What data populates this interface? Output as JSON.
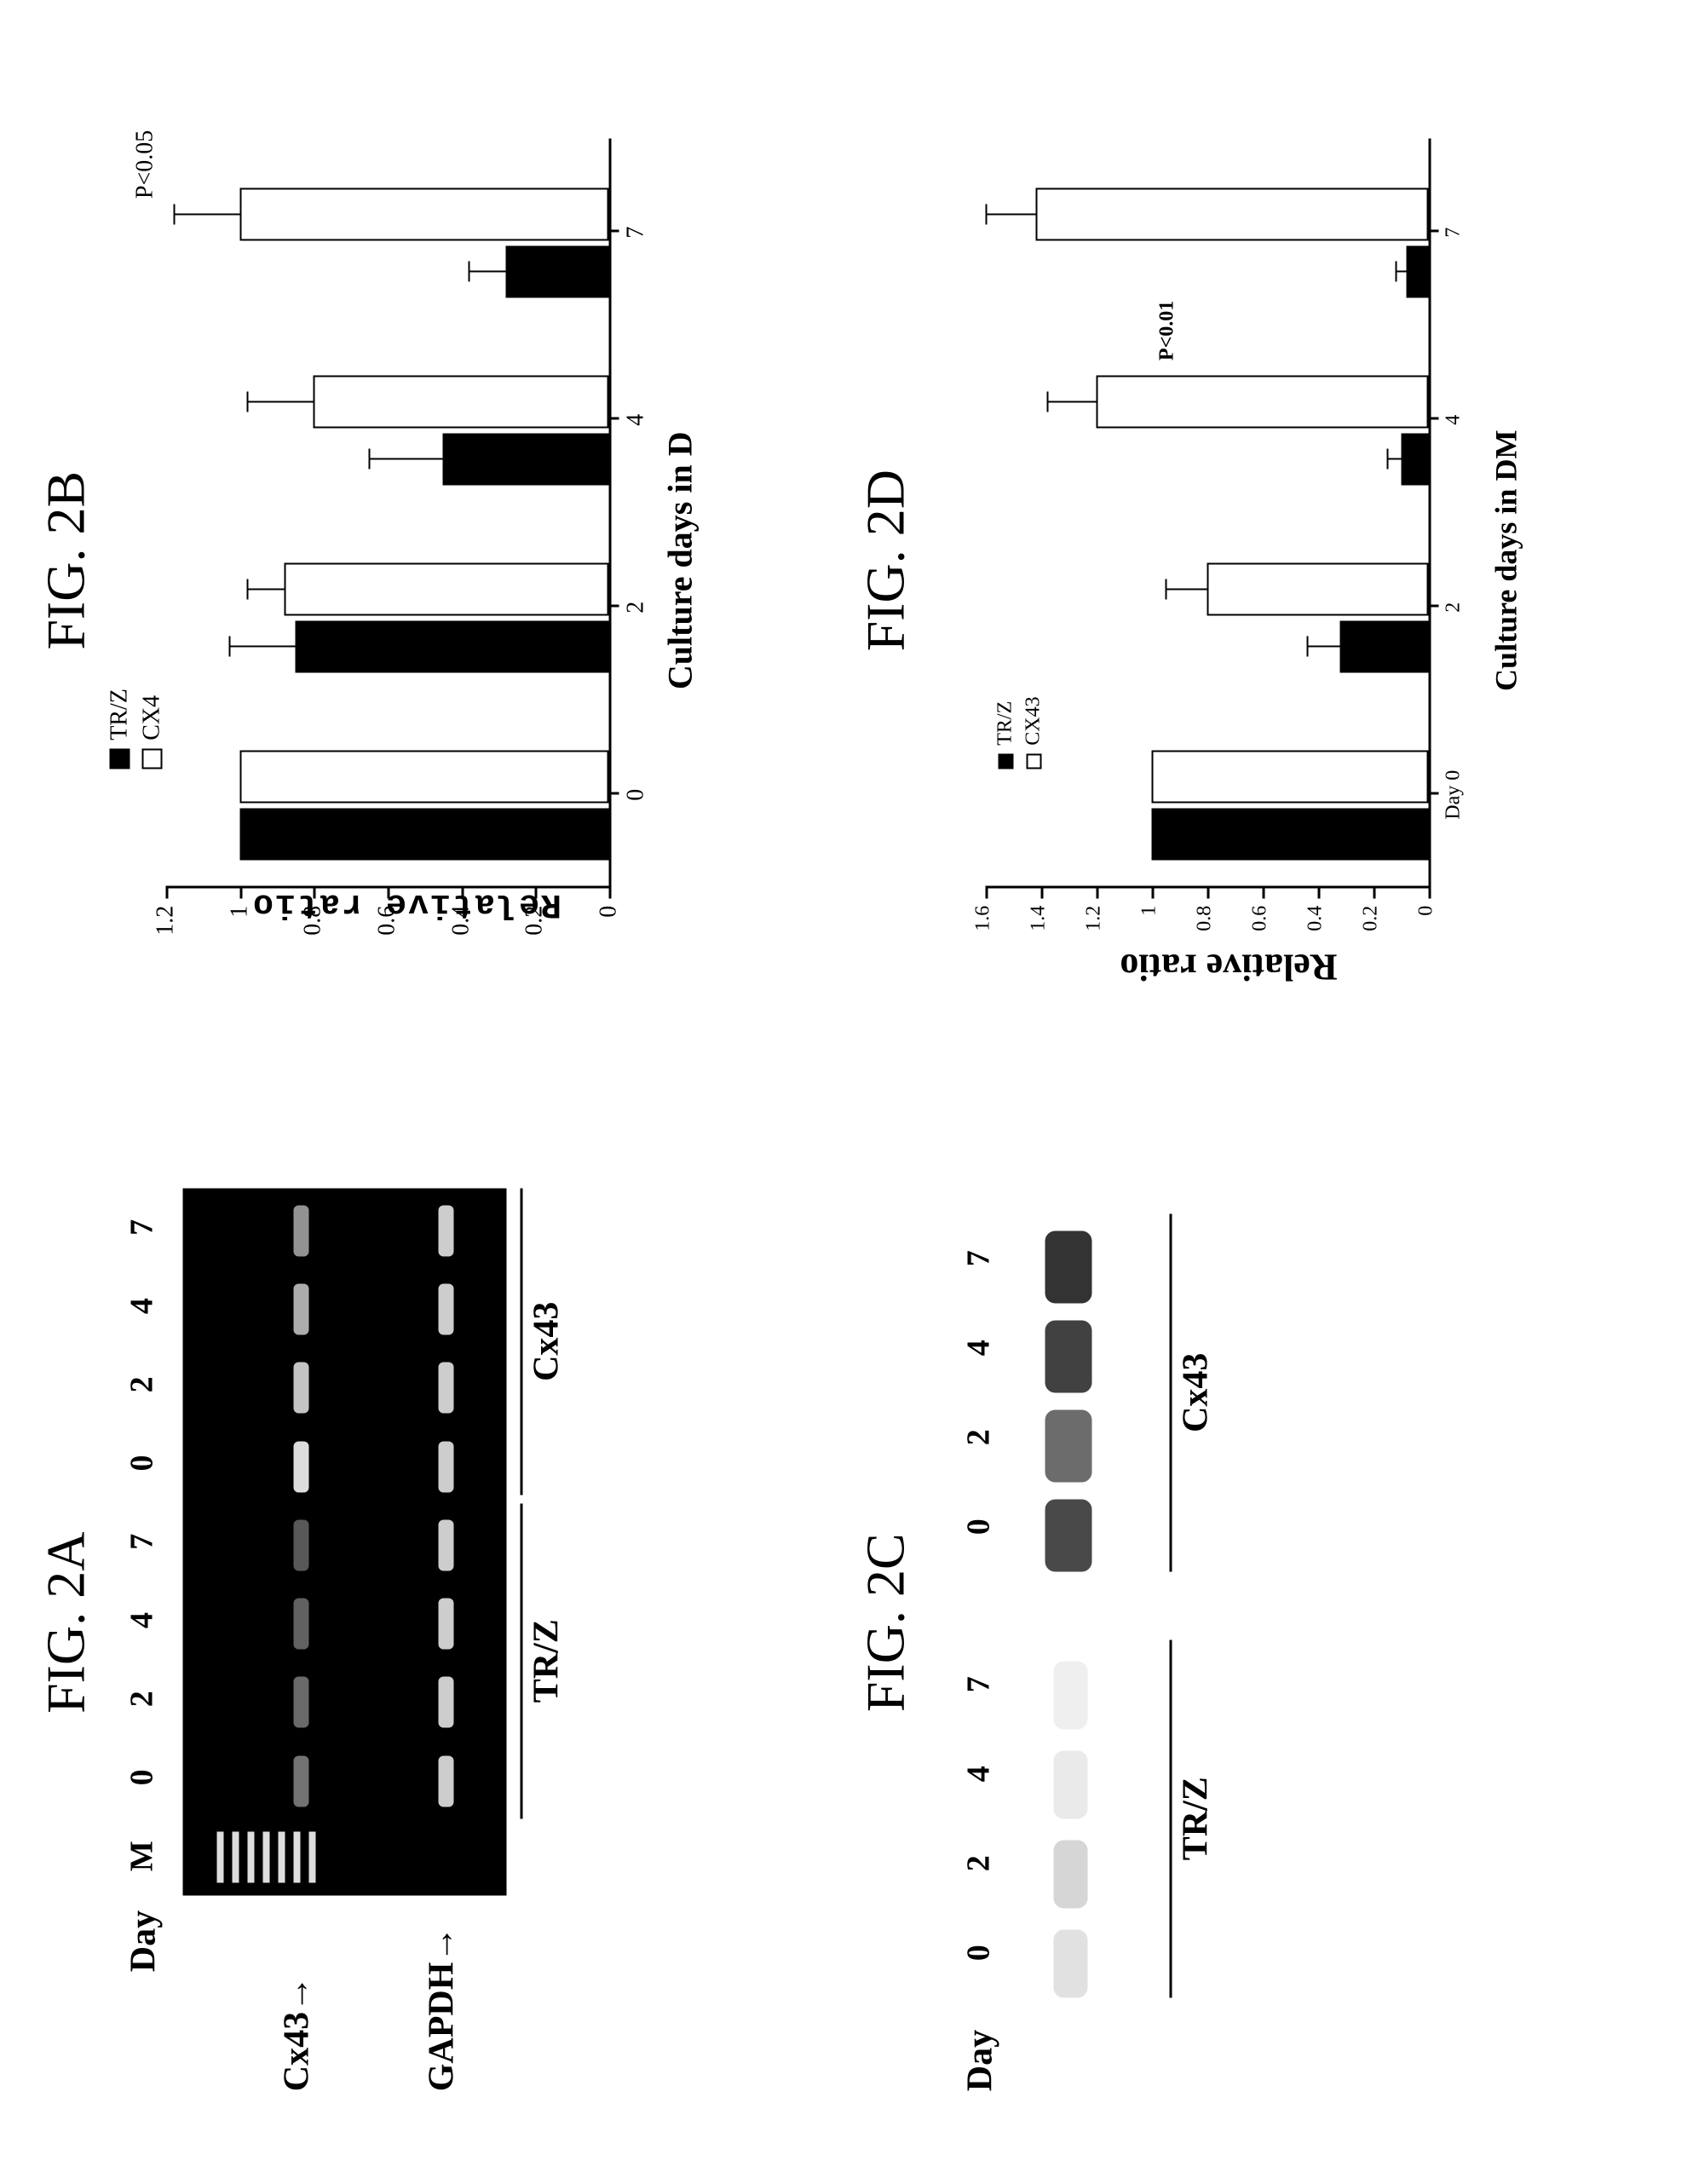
{
  "fig2a": {
    "title": "FIG. 2A",
    "lane_header_prefix": "Day",
    "lanes": [
      "M",
      "0",
      "2",
      "4",
      "7",
      "0",
      "2",
      "4",
      "7"
    ],
    "row_labels": {
      "cx43": "Cx43",
      "gapdh": "GAPDH"
    },
    "groups": {
      "trz": "TR/Z",
      "cx43": "Cx43"
    },
    "gel_bg": "#000000",
    "band_color": "#dddddd",
    "cx43_band_intensity": [
      null,
      0.35,
      0.3,
      0.25,
      0.2,
      1.0,
      0.85,
      0.7,
      0.55
    ],
    "gapdh_band_intensity": [
      null,
      0.9,
      0.9,
      0.9,
      0.9,
      0.9,
      0.9,
      0.9,
      0.9
    ]
  },
  "fig2b": {
    "title": "FIG. 2B",
    "type": "bar",
    "ylabel": "Relative ratio",
    "xlabel": "Culture days in D",
    "categories": [
      "0",
      "2",
      "4",
      "7"
    ],
    "series": [
      {
        "name": "TR/Z",
        "fill": "#000000",
        "values": [
          1.0,
          0.85,
          0.45,
          0.28
        ],
        "err": [
          0.0,
          0.18,
          0.2,
          0.1
        ]
      },
      {
        "name": "CX4",
        "fill": "#ffffff",
        "values": [
          1.0,
          0.88,
          0.8,
          1.0
        ],
        "err": [
          0.0,
          0.1,
          0.18,
          0.18
        ]
      }
    ],
    "ylim": [
      0,
      1.2
    ],
    "yticks": [
      0,
      0.2,
      0.4,
      0.6,
      0.8,
      1,
      1.2
    ],
    "pvalue": "P<0.05",
    "bar_border": "#000000",
    "axis_color": "#000000",
    "label_fontsize": 34,
    "tick_fontsize": 28
  },
  "fig2c": {
    "title": "FIG. 2C",
    "lane_header_prefix": "Day",
    "lanes_left": [
      "0",
      "2",
      "4",
      "7"
    ],
    "lanes_right": [
      "0",
      "2",
      "4",
      "7"
    ],
    "groups": {
      "trz": "TR/Z",
      "cx43": "Cx43"
    },
    "band_color": "#333333",
    "trz_intensity": [
      0.15,
      0.2,
      0.1,
      0.08
    ],
    "cx43_intensity": [
      0.85,
      0.6,
      0.9,
      1.0
    ]
  },
  "fig2d": {
    "title": "FIG. 2D",
    "type": "bar",
    "ylabel": "Relative ratio",
    "xlabel": "Culture days in DM",
    "categories": [
      "Day 0",
      "2",
      "4",
      "7"
    ],
    "series": [
      {
        "name": "TR/Z",
        "fill": "#000000",
        "values": [
          1.0,
          0.32,
          0.1,
          0.08
        ],
        "err": [
          0.0,
          0.12,
          0.05,
          0.04
        ]
      },
      {
        "name": "CX43",
        "fill": "#ffffff",
        "values": [
          1.0,
          0.8,
          1.2,
          1.42
        ],
        "err": [
          0.0,
          0.15,
          0.18,
          0.18
        ]
      }
    ],
    "ylim": [
      0,
      1.6
    ],
    "yticks": [
      0,
      0.2,
      0.4,
      0.6,
      0.8,
      1,
      1.2,
      1.4,
      1.6
    ],
    "pvalue": "P<0.01",
    "bar_border": "#000000",
    "axis_color": "#000000",
    "label_fontsize": 34,
    "tick_fontsize": 24
  }
}
